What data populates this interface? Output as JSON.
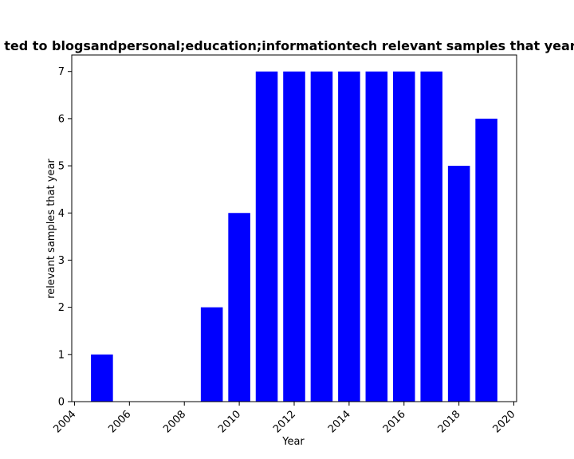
{
  "chart_data": {
    "type": "bar",
    "title": "ted to blogsandpersonal;education;informationtech relevant samples that year",
    "xlabel": "Year",
    "ylabel": "relevant samples that year",
    "x": [
      2005,
      2009,
      2010,
      2011,
      2012,
      2013,
      2014,
      2015,
      2016,
      2017,
      2018,
      2019
    ],
    "values": [
      1,
      2,
      4,
      7,
      7,
      7,
      7,
      7,
      7,
      7,
      5,
      6
    ],
    "bar_color": "#0000ff",
    "xlim": [
      2003.9,
      2020.1
    ],
    "ylim": [
      0,
      7.35
    ],
    "xticks": [
      2004,
      2006,
      2008,
      2010,
      2012,
      2014,
      2016,
      2018,
      2020
    ],
    "yticks": [
      0,
      1,
      2,
      3,
      4,
      5,
      6,
      7
    ],
    "grid": false,
    "legend": "none"
  }
}
